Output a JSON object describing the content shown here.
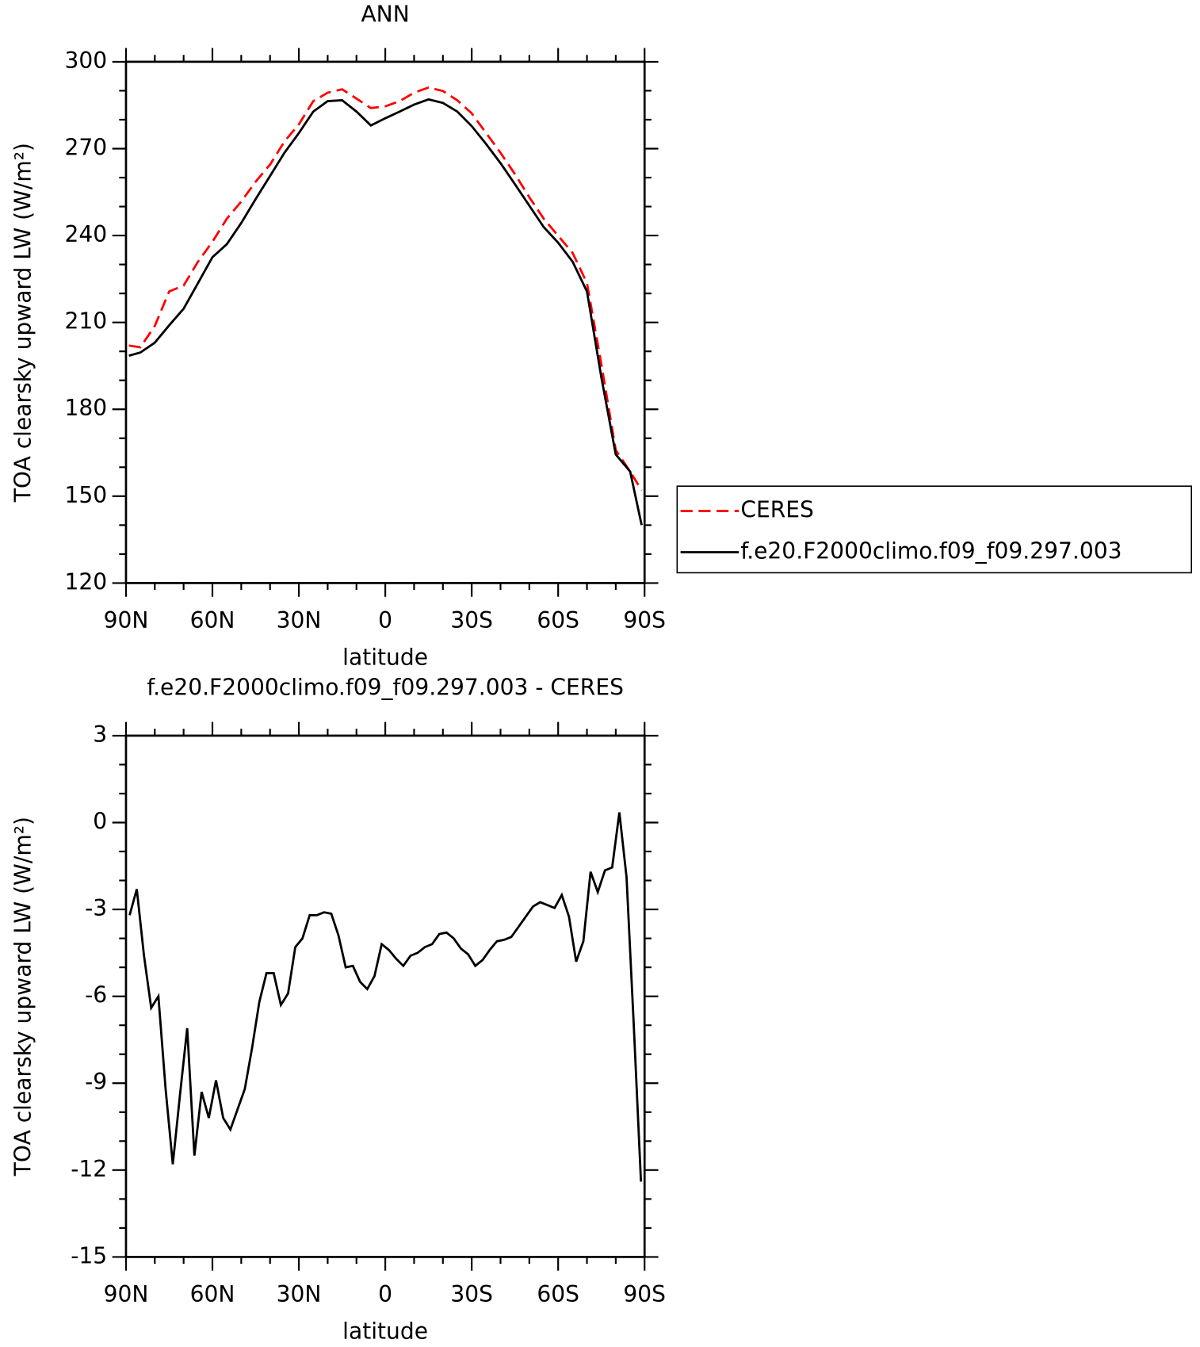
{
  "chart_data": [
    {
      "type": "line",
      "title": "ANN",
      "xlabel": "latitude",
      "ylabel": "TOA clearsky upward LW (W/m²)",
      "x": [
        89,
        85,
        80,
        75,
        70,
        65,
        60,
        55,
        50,
        45,
        40,
        35,
        30,
        25,
        20,
        15,
        10,
        5,
        0,
        -5,
        -10,
        -15,
        -20,
        -25,
        -30,
        -35,
        -40,
        -45,
        -50,
        -55,
        -60,
        -65,
        -70,
        -75,
        -80,
        -85,
        -89
      ],
      "series": [
        {
          "name": "CERES",
          "color": "#ff0000",
          "linestyle": "dashed",
          "values": [
            202,
            201.4,
            208.8,
            220.7,
            222.7,
            231,
            237.8,
            245.8,
            251.7,
            258.6,
            264.5,
            272.5,
            278.4,
            286.4,
            289.3,
            290.5,
            287.3,
            284,
            284.6,
            286.4,
            289.3,
            291.1,
            289.9,
            286.7,
            282.2,
            275.4,
            268.6,
            261.2,
            253.2,
            245.8,
            239.9,
            234,
            223.6,
            195.5,
            165.9,
            158.5,
            152
          ]
        },
        {
          "name": "f.e20.F2000climo.f09_f09.297.003",
          "color": "#000000",
          "linestyle": "solid",
          "values": [
            198.5,
            199.6,
            203,
            209,
            214.7,
            223.6,
            232.5,
            237,
            244.3,
            252.6,
            260.6,
            268.6,
            275.4,
            282.8,
            286.4,
            286.7,
            282.8,
            278,
            280.5,
            282.8,
            285.2,
            287,
            285.8,
            282.8,
            277.8,
            271.6,
            265,
            257.7,
            250.3,
            242.9,
            237.5,
            231,
            220.7,
            191,
            164.4,
            158.5,
            140
          ]
        }
      ],
      "xlim": [
        90,
        -90
      ],
      "xticks": [
        {
          "value": 90,
          "label": "90N"
        },
        {
          "value": 60,
          "label": "60N"
        },
        {
          "value": 30,
          "label": "30N"
        },
        0,
        {
          "value": -30,
          "label": "30S"
        },
        {
          "value": -60,
          "label": "60S"
        },
        {
          "value": -90,
          "label": "90S"
        }
      ],
      "ylim": [
        120,
        300
      ],
      "yticks": [
        120,
        150,
        180,
        210,
        240,
        270,
        300
      ],
      "legend": "right"
    },
    {
      "type": "line",
      "title": "f.e20.F2000climo.f09_f09.297.003 - CERES",
      "xlabel": "latitude",
      "ylabel": "TOA clearsky upward LW (W/m²)",
      "x": [
        88.75,
        86.25,
        83.75,
        81.25,
        78.75,
        76.25,
        73.75,
        71.25,
        68.75,
        66.25,
        63.75,
        61.25,
        58.75,
        56.25,
        53.75,
        51.25,
        48.75,
        46.25,
        43.75,
        41.25,
        38.75,
        36.25,
        33.75,
        31.25,
        28.75,
        26.25,
        23.75,
        21.25,
        18.75,
        16.25,
        13.75,
        11.25,
        8.75,
        6.25,
        3.75,
        1.25,
        -1.25,
        -3.75,
        -6.25,
        -8.75,
        -11.25,
        -13.75,
        -16.25,
        -18.75,
        -21.25,
        -23.75,
        -26.25,
        -28.75,
        -31.25,
        -33.75,
        -36.25,
        -38.75,
        -41.25,
        -43.75,
        -46.25,
        -48.75,
        -51.25,
        -53.75,
        -56.25,
        -58.75,
        -61.25,
        -63.75,
        -66.25,
        -68.75,
        -71.25,
        -73.75,
        -76.25,
        -78.75,
        -81.25,
        -83.75,
        -86.25,
        -88.75
      ],
      "color": "#000000",
      "values": [
        -3.2,
        -2.3,
        -4.6,
        -6.4,
        -6.0,
        -9.2,
        -11.8,
        -9.4,
        -7.1,
        -11.5,
        -9.3,
        -10.2,
        -8.9,
        -10.2,
        -10.6,
        -9.9,
        -9.2,
        -7.8,
        -6.2,
        -5.2,
        -5.2,
        -6.3,
        -5.9,
        -4.3,
        -4.0,
        -3.2,
        -3.2,
        -3.1,
        -3.15,
        -3.9,
        -5.0,
        -4.95,
        -5.5,
        -5.75,
        -5.3,
        -4.2,
        -4.4,
        -4.7,
        -4.95,
        -4.6,
        -4.5,
        -4.3,
        -4.2,
        -3.85,
        -3.8,
        -4.0,
        -4.35,
        -4.55,
        -4.95,
        -4.75,
        -4.4,
        -4.1,
        -4.05,
        -3.95,
        -3.6,
        -3.25,
        -2.9,
        -2.75,
        -2.85,
        -2.95,
        -2.5,
        -3.25,
        -4.8,
        -4.1,
        -1.7,
        -2.4,
        -1.65,
        -1.55,
        0.35,
        -1.9,
        -7.0,
        -12.4
      ],
      "xlim": [
        90,
        -90
      ],
      "xticks": [
        {
          "value": 90,
          "label": "90N"
        },
        {
          "value": 60,
          "label": "60N"
        },
        {
          "value": 30,
          "label": "30N"
        },
        0,
        {
          "value": -30,
          "label": "30S"
        },
        {
          "value": -60,
          "label": "60S"
        },
        {
          "value": -90,
          "label": "90S"
        }
      ],
      "ylim": [
        -15,
        3
      ],
      "yticks": [
        -15,
        -12,
        -9,
        -6,
        -3,
        0,
        3
      ]
    }
  ]
}
